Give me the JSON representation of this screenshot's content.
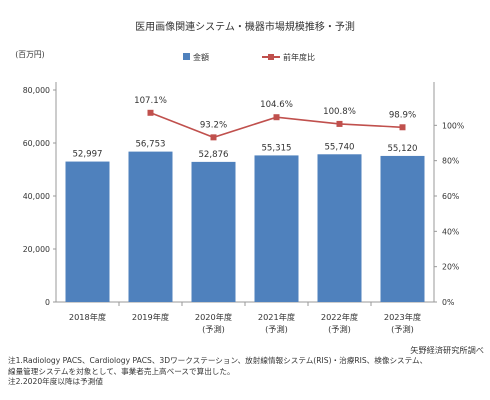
{
  "chart_data": {
    "type": "bar",
    "title": "医用画像関連システム・機器市場規模推移・予測",
    "unit_label": "(百万円)",
    "categories": [
      [
        "2018年度"
      ],
      [
        "2019年度"
      ],
      [
        "2020年度",
        "(予測)"
      ],
      [
        "2021年度",
        "(予測)"
      ],
      [
        "2022年度",
        "(予測)"
      ],
      [
        "2023年度",
        "(予測)"
      ]
    ],
    "series": [
      {
        "name": "金額",
        "type": "bar",
        "axis": "left",
        "color": "#4F81BD",
        "values": [
          52997,
          56753,
          52876,
          55315,
          55740,
          55120
        ],
        "labels": [
          "52,997",
          "56,753",
          "52,876",
          "55,315",
          "55,740",
          "55,120"
        ]
      },
      {
        "name": "前年度比",
        "type": "line",
        "axis": "right",
        "color": "#C0504D",
        "values": [
          null,
          107.1,
          93.2,
          104.6,
          100.8,
          98.9
        ],
        "labels": [
          "",
          "107.1%",
          "93.2%",
          "104.6%",
          "100.8%",
          "98.9%"
        ]
      }
    ],
    "y_left": {
      "min": 0,
      "max": 80000,
      "ticks": [
        0,
        20000,
        40000,
        60000,
        80000
      ],
      "tick_labels": [
        "0",
        "20,000",
        "40,000",
        "60,000",
        "80,000"
      ]
    },
    "y_right": {
      "min": 0,
      "max": 120,
      "ticks": [
        0,
        20,
        40,
        60,
        80,
        100
      ],
      "tick_labels": [
        "0%",
        "20%",
        "40%",
        "60%",
        "80%",
        "100%"
      ]
    },
    "grid": false,
    "legend_position": "top"
  },
  "source": "矢野経済研究所調べ",
  "notes": [
    "注1.Radiology PACS、Cardiology PACS、3Dワークステーション、放射線情報システム(RIS)・治療RIS、検像システム、",
    "線量管理システムを対象として、事業者売上高ベースで算出した。",
    "注2.2020年度以降は予測値"
  ]
}
